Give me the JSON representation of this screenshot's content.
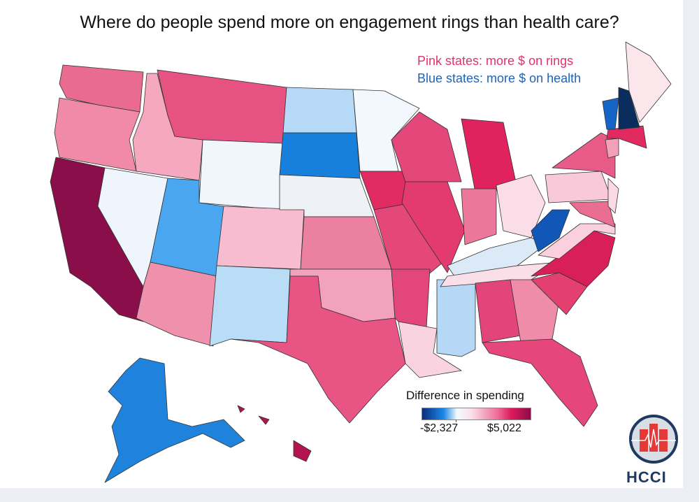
{
  "title": "Where do people spend more on engagement rings than health care?",
  "notes": {
    "pink": "Pink states: more $ on rings",
    "blue": "Blue states: more $ on health"
  },
  "legend": {
    "title": "Difference in spending",
    "min_label": "-$2,327",
    "max_label": "$5,022",
    "min": -2327,
    "max": 5022,
    "colors": [
      "#0a2d7e",
      "#1a8ae6",
      "#f4f9fe",
      "#fbe0ea",
      "#ec6c95",
      "#dd1a5a",
      "#8a0e4a"
    ]
  },
  "logo": {
    "text": "HCCI",
    "color": "#1e3a5f",
    "accent": "#e53935"
  },
  "states": [
    {
      "id": "WA",
      "color": "#ea6b92"
    },
    {
      "id": "OR",
      "color": "#f08aa8"
    },
    {
      "id": "CA",
      "color": "#8a0e4a"
    },
    {
      "id": "NV",
      "color": "#eef5fc"
    },
    {
      "id": "ID",
      "color": "#f5a8c0"
    },
    {
      "id": "MT",
      "color": "#e65282"
    },
    {
      "id": "WY",
      "color": "#f0f6fc"
    },
    {
      "id": "UT",
      "color": "#4aa6ee"
    },
    {
      "id": "CO",
      "color": "#f7bcd0"
    },
    {
      "id": "AZ",
      "color": "#ef90ad"
    },
    {
      "id": "NM",
      "color": "#b9dcf7"
    },
    {
      "id": "ND",
      "color": "#b5d9f6"
    },
    {
      "id": "SD",
      "color": "#1780dd"
    },
    {
      "id": "NE",
      "color": "#eef2f6"
    },
    {
      "id": "KS",
      "color": "#ec80a0"
    },
    {
      "id": "OK",
      "color": "#f2a2bd"
    },
    {
      "id": "TX",
      "color": "#e85585"
    },
    {
      "id": "MN",
      "color": "#f2f8fd"
    },
    {
      "id": "IA",
      "color": "#e02b63"
    },
    {
      "id": "MO",
      "color": "#e4487a"
    },
    {
      "id": "AR",
      "color": "#e2467a"
    },
    {
      "id": "LA",
      "color": "#f9d3e0"
    },
    {
      "id": "WI",
      "color": "#e4487a"
    },
    {
      "id": "IL",
      "color": "#e33a70"
    },
    {
      "id": "MS",
      "color": "#b5d8f6"
    },
    {
      "id": "MI",
      "color": "#e0235e"
    },
    {
      "id": "IN",
      "color": "#ec779a"
    },
    {
      "id": "OH",
      "color": "#fbdde7"
    },
    {
      "id": "KY",
      "color": "#dbeaf6"
    },
    {
      "id": "TN",
      "color": "#fbdfe8"
    },
    {
      "id": "AL",
      "color": "#e2457a"
    },
    {
      "id": "GA",
      "color": "#ef8ca9"
    },
    {
      "id": "FL",
      "color": "#e5467c"
    },
    {
      "id": "SC",
      "color": "#e3406f"
    },
    {
      "id": "NC",
      "color": "#d81f59"
    },
    {
      "id": "VA",
      "color": "#fbd0de"
    },
    {
      "id": "WV",
      "color": "#1057b8"
    },
    {
      "id": "PA",
      "color": "#f8c9d8"
    },
    {
      "id": "NY",
      "color": "#e85a88"
    },
    {
      "id": "MD",
      "color": "#ea6d92"
    },
    {
      "id": "NJ",
      "color": "#fad9e4"
    },
    {
      "id": "CT",
      "color": "#f4a0b9"
    },
    {
      "id": "MA",
      "color": "#e02a60"
    },
    {
      "id": "VT",
      "color": "#1565c6"
    },
    {
      "id": "NH",
      "color": "#0a2d5e"
    },
    {
      "id": "ME",
      "color": "#fbe6ec"
    },
    {
      "id": "AK",
      "color": "#1f82dd"
    },
    {
      "id": "HI",
      "color": "#b3144f"
    }
  ]
}
